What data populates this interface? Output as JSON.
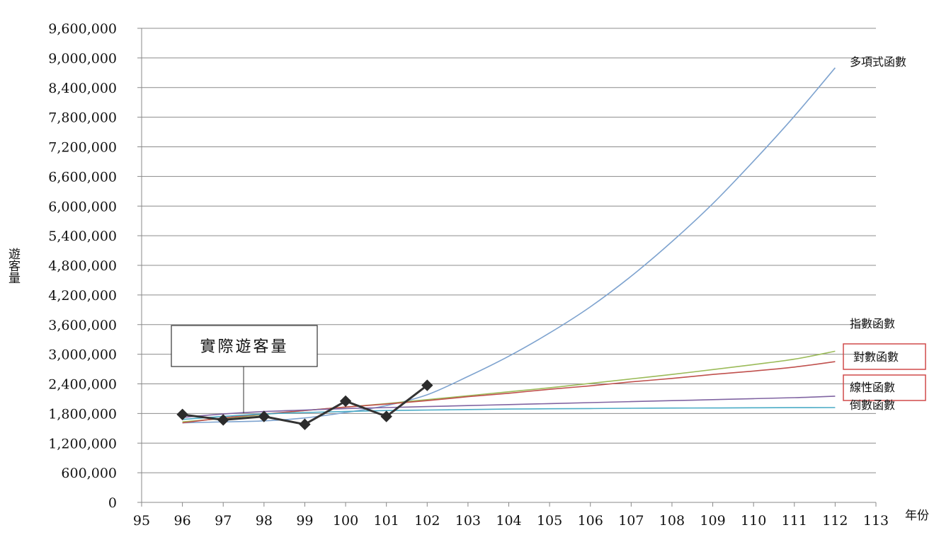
{
  "chart_data": {
    "type": "line",
    "xlabel": "年份",
    "ylabel": "遊客量",
    "xlim": [
      95,
      113
    ],
    "ylim": [
      0,
      9600000
    ],
    "x_ticks": [
      "95",
      "96",
      "97",
      "98",
      "99",
      "100",
      "101",
      "102",
      "103",
      "104",
      "105",
      "106",
      "107",
      "108",
      "109",
      "110",
      "111",
      "112",
      "113"
    ],
    "y_ticks": [
      "0",
      "600,000",
      "1,200,000",
      "1,800,000",
      "2,400,000",
      "3,000,000",
      "3,600,000",
      "4,200,000",
      "4,800,000",
      "5,400,000",
      "6,000,000",
      "6,600,000",
      "7,200,000",
      "7,800,000",
      "8,400,000",
      "9,000,000",
      "9,600,000"
    ],
    "grid": true,
    "actual": {
      "name": "實際遊客量",
      "color": "#333333",
      "x": [
        96,
        97,
        98,
        99,
        100,
        101,
        102
      ],
      "y": [
        1780000,
        1670000,
        1740000,
        1580000,
        2050000,
        1740000,
        2370000
      ]
    },
    "series": [
      {
        "name": "多項式函數",
        "color": "#7ea3cf",
        "x": [
          96,
          97,
          98,
          99,
          100,
          101,
          102,
          103,
          104,
          105,
          106,
          107,
          108,
          109,
          110,
          111,
          112
        ],
        "y": [
          1610000,
          1630000,
          1650000,
          1710000,
          1820000,
          1960000,
          2180000,
          2550000,
          2960000,
          3430000,
          3960000,
          4580000,
          5280000,
          6050000,
          6910000,
          7820000,
          8800000
        ]
      },
      {
        "name": "指數函數",
        "color": "#9bbb59",
        "x": [
          96,
          97,
          98,
          99,
          100,
          101,
          102,
          103,
          104,
          105,
          106,
          107,
          108,
          109,
          110,
          111,
          112
        ],
        "y": [
          1630000,
          1700000,
          1780000,
          1860000,
          1930000,
          2000000,
          2080000,
          2160000,
          2240000,
          2320000,
          2410000,
          2500000,
          2590000,
          2690000,
          2790000,
          2900000,
          3060000
        ]
      },
      {
        "name": "對數函數",
        "color": "#c0504d",
        "x": [
          96,
          97,
          98,
          99,
          100,
          101,
          102,
          103,
          104,
          105,
          106,
          107,
          108,
          109,
          110,
          111,
          112
        ],
        "y": [
          1610000,
          1710000,
          1790000,
          1860000,
          1930000,
          1990000,
          2060000,
          2140000,
          2210000,
          2290000,
          2360000,
          2440000,
          2510000,
          2590000,
          2660000,
          2740000,
          2850000
        ]
      },
      {
        "name": "線性函數",
        "color": "#8064a2",
        "x": [
          96,
          97,
          98,
          99,
          100,
          101,
          102,
          103,
          104,
          105,
          106,
          107,
          108,
          109,
          110,
          111,
          112
        ],
        "y": [
          1720000,
          1790000,
          1840000,
          1870000,
          1900000,
          1920000,
          1940000,
          1960000,
          1980000,
          2000000,
          2020000,
          2040000,
          2060000,
          2080000,
          2100000,
          2120000,
          2150000
        ]
      },
      {
        "name": "倒數函數",
        "color": "#4bacc6",
        "x": [
          96,
          97,
          98,
          99,
          100,
          101,
          102,
          103,
          104,
          105,
          106,
          107,
          108,
          109,
          110,
          111,
          112
        ],
        "y": [
          1680000,
          1740000,
          1790000,
          1820000,
          1840000,
          1860000,
          1870000,
          1880000,
          1890000,
          1895000,
          1900000,
          1905000,
          1910000,
          1912000,
          1915000,
          1918000,
          1920000
        ]
      }
    ]
  }
}
